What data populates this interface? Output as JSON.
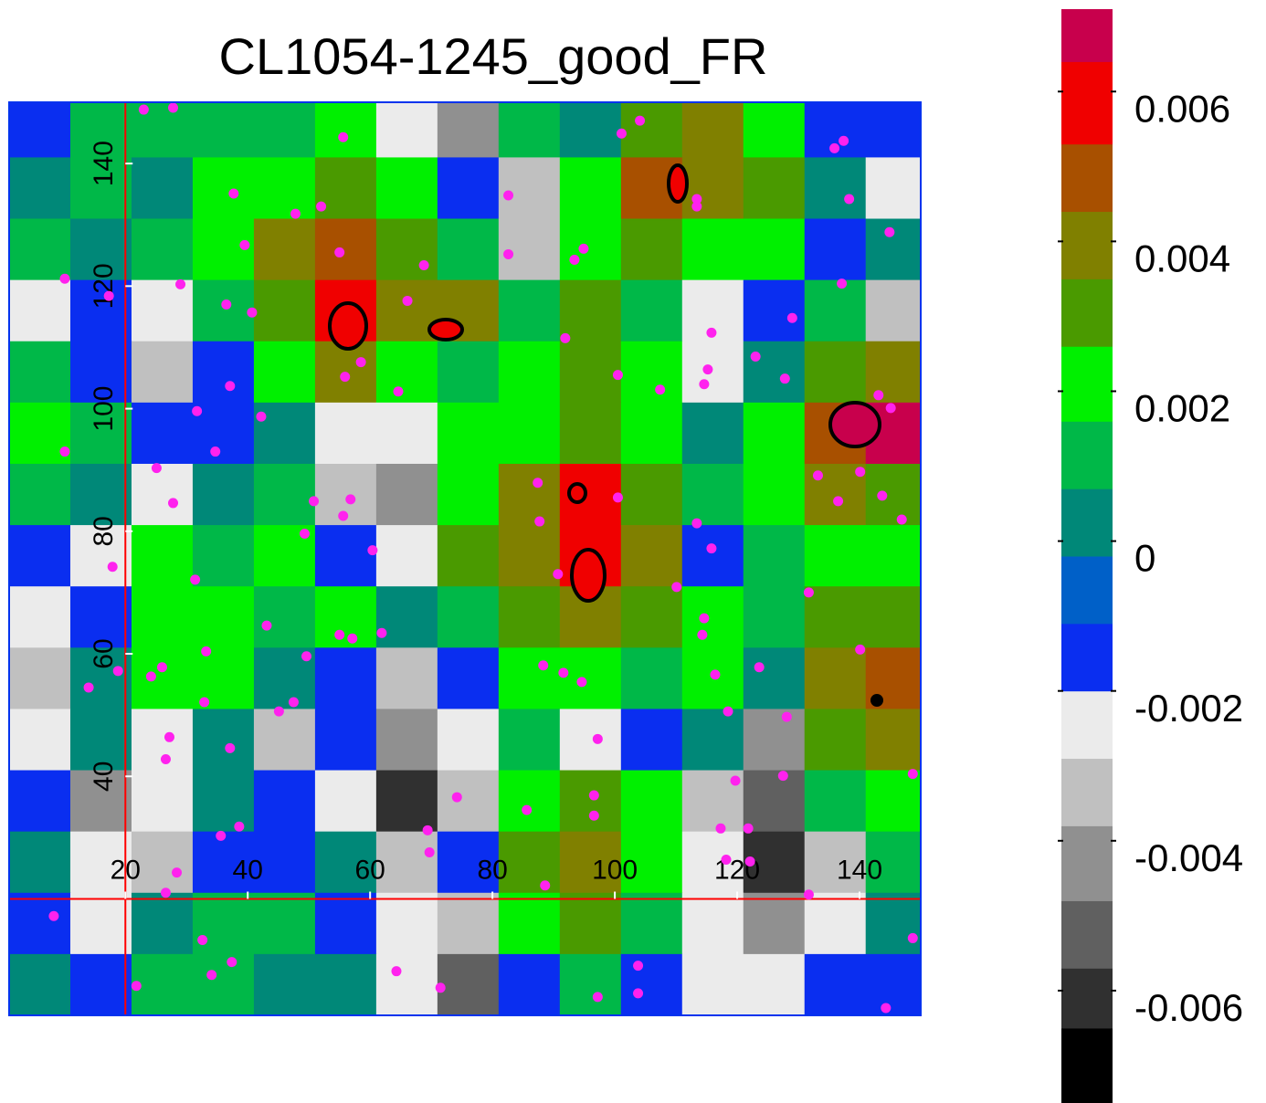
{
  "chart_data": {
    "type": "heatmap",
    "title": "CL1054-1245_good_FR",
    "xlim": [
      1,
      150
    ],
    "ylim": [
      1,
      150
    ],
    "xticks": [
      20,
      40,
      60,
      80,
      100,
      120,
      140
    ],
    "yticks": [
      40,
      60,
      80,
      100,
      120,
      140
    ],
    "axis_cross": [
      20,
      20
    ],
    "axis_color": "#ff0000",
    "frame_color": "#0033ee",
    "heatmap": {
      "x": [
        6,
        16,
        26,
        36,
        46,
        56,
        66,
        76,
        86,
        96,
        106,
        116,
        126,
        136,
        146
      ],
      "y": [
        146,
        136,
        126,
        116,
        106,
        96,
        86,
        76,
        66,
        56,
        46,
        36,
        26,
        16,
        6
      ],
      "values": [
        [
          -0.0015,
          0.001,
          0.001,
          0.0015,
          0.001,
          0.002,
          -0.0025,
          -0.004,
          0.001,
          0.0002,
          0.003,
          0.004,
          0.002,
          -0.0015,
          -0.0015
        ],
        [
          0.0002,
          0.001,
          0.0002,
          0.002,
          0.002,
          0.003,
          0.002,
          -0.0015,
          -0.003,
          0.002,
          0.005,
          0.004,
          0.003,
          0.0002,
          -0.0025
        ],
        [
          0.001,
          0.0002,
          0.001,
          0.002,
          0.004,
          0.005,
          0.003,
          0.001,
          -0.003,
          0.002,
          0.003,
          0.0025,
          0.002,
          -0.0015,
          0.0002
        ],
        [
          -0.0025,
          -0.0015,
          -0.0025,
          0.001,
          0.003,
          0.006,
          0.004,
          0.004,
          0.001,
          0.003,
          0.001,
          -0.0025,
          -0.0015,
          0.001,
          -0.003
        ],
        [
          0.001,
          -0.0015,
          -0.003,
          -0.0015,
          0.002,
          0.004,
          0.002,
          0.001,
          0.002,
          0.003,
          0.002,
          -0.0025,
          0.0002,
          0.003,
          0.004
        ],
        [
          0.002,
          0.001,
          -0.0015,
          -0.0015,
          0.0002,
          -0.0025,
          -0.0025,
          0.002,
          0.002,
          0.003,
          0.002,
          0.0002,
          0.002,
          0.005,
          0.007
        ],
        [
          0.001,
          0.0002,
          -0.0025,
          0.0002,
          0.001,
          -0.003,
          -0.004,
          0.002,
          0.004,
          0.006,
          0.003,
          0.001,
          0.002,
          0.004,
          0.003
        ],
        [
          -0.0015,
          -0.0025,
          0.002,
          0.001,
          0.002,
          -0.0015,
          -0.0025,
          0.003,
          0.004,
          0.006,
          0.004,
          -0.0015,
          0.001,
          0.002,
          0.002
        ],
        [
          -0.0025,
          -0.0015,
          0.002,
          0.002,
          0.001,
          0.002,
          0.0002,
          0.001,
          0.003,
          0.004,
          0.003,
          0.002,
          0.001,
          0.003,
          0.003
        ],
        [
          -0.003,
          0.0002,
          0.002,
          0.002,
          0.0002,
          -0.0015,
          -0.003,
          -0.0015,
          0.002,
          0.002,
          0.001,
          0.002,
          0.0002,
          0.004,
          0.005
        ],
        [
          -0.0025,
          0.0002,
          -0.0025,
          0.0002,
          -0.003,
          -0.0015,
          -0.004,
          -0.0025,
          0.001,
          -0.0025,
          -0.0015,
          0.0002,
          -0.004,
          0.003,
          0.004
        ],
        [
          -0.0015,
          -0.004,
          -0.0025,
          0.0002,
          -0.0015,
          -0.0025,
          -0.006,
          -0.003,
          0.002,
          0.003,
          0.002,
          -0.003,
          -0.005,
          0.001,
          0.002
        ],
        [
          0.0002,
          -0.0025,
          -0.0035,
          -0.0015,
          -0.0015,
          0.0002,
          -0.003,
          -0.0015,
          0.003,
          0.004,
          0.002,
          -0.0025,
          -0.006,
          -0.0035,
          0.001
        ],
        [
          -0.0015,
          -0.0025,
          0.0002,
          0.001,
          0.001,
          -0.0015,
          -0.0025,
          -0.003,
          0.002,
          0.003,
          0.001,
          -0.0025,
          -0.004,
          -0.0025,
          0.0002
        ],
        [
          0.0002,
          -0.0015,
          0.001,
          0.001,
          0.0002,
          0.0002,
          -0.0025,
          -0.005,
          -0.0015,
          0.001,
          -0.0015,
          -0.0025,
          -0.0025,
          -0.0015,
          -0.0015
        ]
      ]
    },
    "colorbar": {
      "lim": [
        -0.0075,
        0.0071
      ],
      "levels": [
        -0.0075,
        -0.0065,
        -0.0057,
        -0.0048,
        -0.0038,
        -0.0029,
        -0.002,
        -0.0011,
        -0.0002,
        0.0007,
        0.0016,
        0.0026,
        0.0035,
        0.0044,
        0.0053,
        0.0064,
        0.0071
      ],
      "colors": [
        "#000000",
        "#303030",
        "#606060",
        "#909090",
        "#c0c0c0",
        "#ebebeb",
        "#0a2ef0",
        "#0060c8",
        "#008878",
        "#00b848",
        "#00f000",
        "#4a9a00",
        "#808000",
        "#a85000",
        "#f00000",
        "#c8004c"
      ],
      "ticks": [
        -0.006,
        -0.004,
        -0.002,
        0,
        0.002,
        0.004,
        0.006
      ]
    },
    "points": {
      "color": "#ff22ee",
      "x": [
        23.0,
        27.8,
        55.6,
        37.7,
        47.8,
        52.0,
        39.5,
        55.0,
        68.8,
        29.0,
        10.1,
        17.3,
        36.5,
        40.7,
        66.1,
        58.5,
        55.9,
        64.6,
        37.1,
        31.7,
        42.2,
        34.7,
        10.1,
        25.1,
        27.8,
        50.8,
        55.6,
        56.8,
        49.3,
        60.4,
        17.9,
        31.4,
        43.1,
        55.0,
        57.1,
        61.9,
        33.2,
        49.6,
        26.0,
        24.2,
        18.8,
        14.0,
        47.5,
        45.1,
        32.9,
        27.2,
        26.6,
        37.1,
        38.6,
        35.6,
        74.2,
        69.4,
        69.7,
        28.4,
        26.6,
        8.3,
        32.6,
        37.4,
        34.1,
        21.8,
        64.3,
        71.5,
        103.8,
        103.8,
        97.2,
        88.6,
        85.6,
        96.6,
        96.6,
        97.2,
        88.3,
        91.6,
        94.6,
        90.7,
        87.4,
        87.7,
        100.5,
        110.1,
        114.6,
        114.3,
        116.4,
        118.5,
        123.6,
        128.1,
        127.5,
        119.7,
        117.3,
        121.8,
        118.2,
        122.1,
        131.7,
        148.7,
        148.7,
        144.3,
        113.4,
        115.8,
        131.7,
        140.1,
        136.5,
        133.2,
        140.1,
        143.7,
        146.9,
        143.1,
        145.1,
        127.8,
        123.0,
        115.2,
        114.6,
        115.8,
        107.4,
        100.5,
        129.0,
        137.1,
        144.9,
        138.3,
        135.9,
        137.4,
        113.4,
        113.4,
        101.1,
        104.1,
        94.9,
        93.4,
        91.9,
        82.6,
        82.6
      ],
      "y": [
        148.8,
        149.1,
        144.3,
        135.1,
        131.8,
        133.0,
        126.7,
        125.5,
        123.4,
        120.3,
        121.2,
        118.4,
        117.0,
        115.7,
        117.6,
        107.6,
        105.2,
        102.8,
        103.7,
        99.6,
        98.7,
        93.0,
        93.0,
        90.3,
        84.6,
        84.9,
        82.5,
        85.2,
        79.6,
        76.9,
        74.2,
        72.1,
        64.6,
        63.1,
        62.5,
        63.4,
        60.4,
        59.6,
        57.8,
        56.3,
        57.2,
        54.5,
        52.1,
        50.6,
        52.1,
        46.4,
        42.8,
        44.6,
        31.8,
        30.3,
        36.6,
        31.2,
        27.6,
        24.3,
        21.0,
        17.2,
        13.3,
        9.7,
        7.6,
        5.8,
        8.2,
        5.5,
        9.1,
        4.6,
        4.0,
        22.2,
        34.5,
        36.9,
        33.6,
        46.1,
        58.1,
        56.9,
        55.4,
        73.0,
        87.9,
        81.6,
        85.5,
        70.9,
        65.8,
        63.1,
        56.6,
        50.6,
        57.8,
        49.7,
        40.1,
        39.3,
        31.5,
        31.5,
        26.4,
        26.1,
        20.7,
        40.4,
        13.6,
        2.2,
        81.3,
        77.2,
        70.0,
        60.7,
        84.9,
        89.1,
        89.7,
        85.8,
        81.9,
        102.2,
        100.1,
        104.9,
        108.5,
        106.4,
        104.0,
        112.4,
        103.1,
        105.5,
        114.8,
        120.4,
        128.8,
        134.2,
        142.5,
        143.7,
        134.2,
        133.0,
        144.9,
        147.0,
        126.1,
        124.3,
        111.5,
        134.8,
        125.2
      ]
    }
  }
}
